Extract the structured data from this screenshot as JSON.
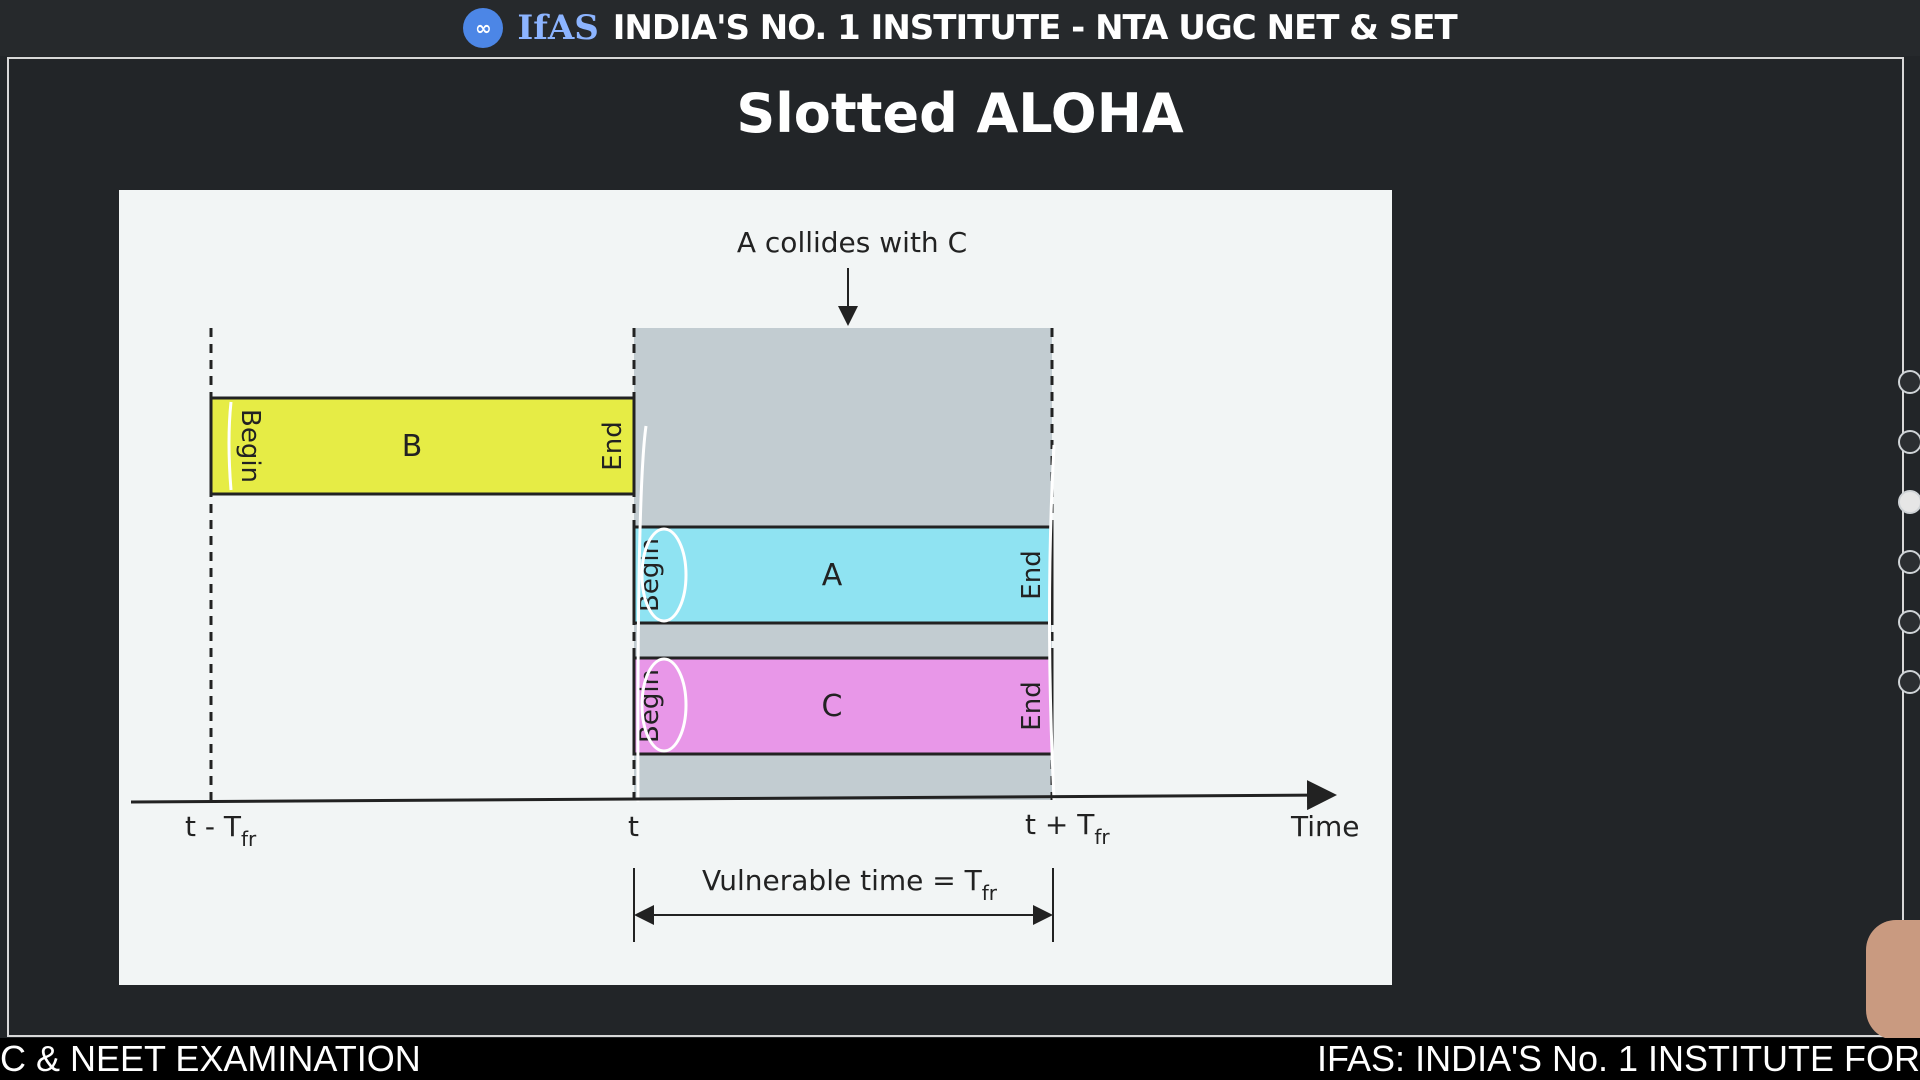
{
  "banner": {
    "logo_text": "IfAS",
    "title": "INDIA'S NO. 1 INSTITUTE - NTA UGC NET & SET"
  },
  "slide": {
    "title": "Slotted ALOHA"
  },
  "diagram": {
    "annotation": "A collides with C",
    "axis_label": "Time",
    "ticks": [
      {
        "base": "t - T",
        "sub": "fr"
      },
      {
        "base": "t",
        "sub": ""
      },
      {
        "base": "t + T",
        "sub": "fr"
      }
    ],
    "vulnerable": {
      "base": "Vulnerable time = T",
      "sub": "fr"
    },
    "frames": [
      {
        "name": "B",
        "begin": "Begin",
        "end": "End",
        "color": "#e6ec45"
      },
      {
        "name": "A",
        "begin": "Begin",
        "end": "End",
        "color": "#8fe3f2"
      },
      {
        "name": "C",
        "begin": "Begin",
        "end": "End",
        "color": "#e897e8"
      }
    ],
    "collision_color": "#c2ccd1"
  },
  "ticker": {
    "left": "C & NEET EXAMINATION",
    "right": "IFAS: INDIA'S No. 1  INSTITUTE FOR"
  }
}
